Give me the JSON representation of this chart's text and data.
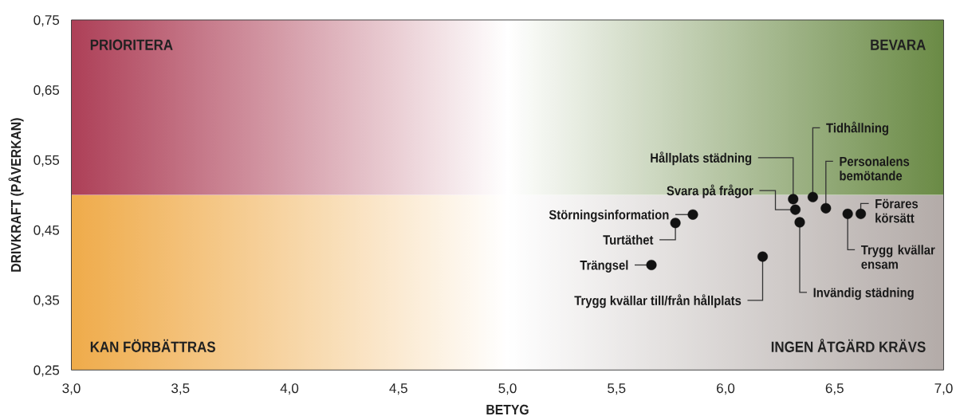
{
  "chart_data": {
    "type": "scatter",
    "xlabel": "BETYG",
    "ylabel": "DRIVKRAFT (PÅVERKAN)",
    "color": "#111111",
    "marker": "circle",
    "x": [
      5.85,
      5.77,
      5.66,
      6.17,
      6.31,
      6.32,
      6.4,
      6.46,
      6.62,
      6.56,
      6.34
    ],
    "values": [
      0.472,
      0.46,
      0.4,
      0.412,
      0.494,
      0.479,
      0.497,
      0.481,
      0.473,
      0.473,
      0.461
    ],
    "xlim": [
      3,
      7
    ],
    "ylim": [
      0.25,
      0.75
    ],
    "xticks": [
      {
        "value": 3,
        "label": "3,0"
      },
      {
        "value": 3.5,
        "label": "3,5"
      },
      {
        "value": 4,
        "label": "4,0"
      },
      {
        "value": 4.5,
        "label": "4,5"
      },
      {
        "value": 5,
        "label": "5,0"
      },
      {
        "value": 5.5,
        "label": "5,5"
      },
      {
        "value": 6,
        "label": "6,0"
      },
      {
        "value": 6.5,
        "label": "6,5"
      },
      {
        "value": 7,
        "label": "7,0"
      }
    ],
    "yticks": [
      {
        "value": 0.25,
        "label": "0,25"
      },
      {
        "value": 0.35,
        "label": "0,35"
      },
      {
        "value": 0.45,
        "label": "0,45"
      },
      {
        "value": 0.55,
        "label": "0,55"
      },
      {
        "value": 0.65,
        "label": "0,65"
      },
      {
        "value": 0.75,
        "label": "0,75"
      }
    ],
    "bands": [
      {
        "axis": "y",
        "from": 0.5,
        "to": 0.75
      },
      {
        "axis": "y",
        "from": 0.25,
        "to": 0.5
      }
    ],
    "annotations": [
      {
        "text": "Störningsinformation",
        "x": 5.85,
        "y": 0.472
      },
      {
        "text": "Turtäthet",
        "x": 5.77,
        "y": 0.46
      },
      {
        "text": "Trängsel",
        "x": 5.66,
        "y": 0.4
      },
      {
        "text": "Trygg kvällar till/från hållplats",
        "x": 6.17,
        "y": 0.412
      },
      {
        "text": "Hållplats städning",
        "x": 6.31,
        "y": 0.494
      },
      {
        "text": "Svara på frågor",
        "x": 6.32,
        "y": 0.479
      },
      {
        "text": "Tidhållning",
        "x": 6.4,
        "y": 0.497
      },
      {
        "text": "Personalens bemötande",
        "x": 6.46,
        "y": 0.481
      },
      {
        "text": "Förares körsätt",
        "x": 6.62,
        "y": 0.473
      },
      {
        "text": "Trygg kvällar ensam",
        "x": 6.56,
        "y": 0.473
      },
      {
        "text": "Invändig städning",
        "x": 6.34,
        "y": 0.461
      },
      "PRIORITERA",
      "BEVARA",
      "KAN FÖRBÄTTRAS",
      "INGEN ÅTGÄRD KRÄVS"
    ]
  }
}
